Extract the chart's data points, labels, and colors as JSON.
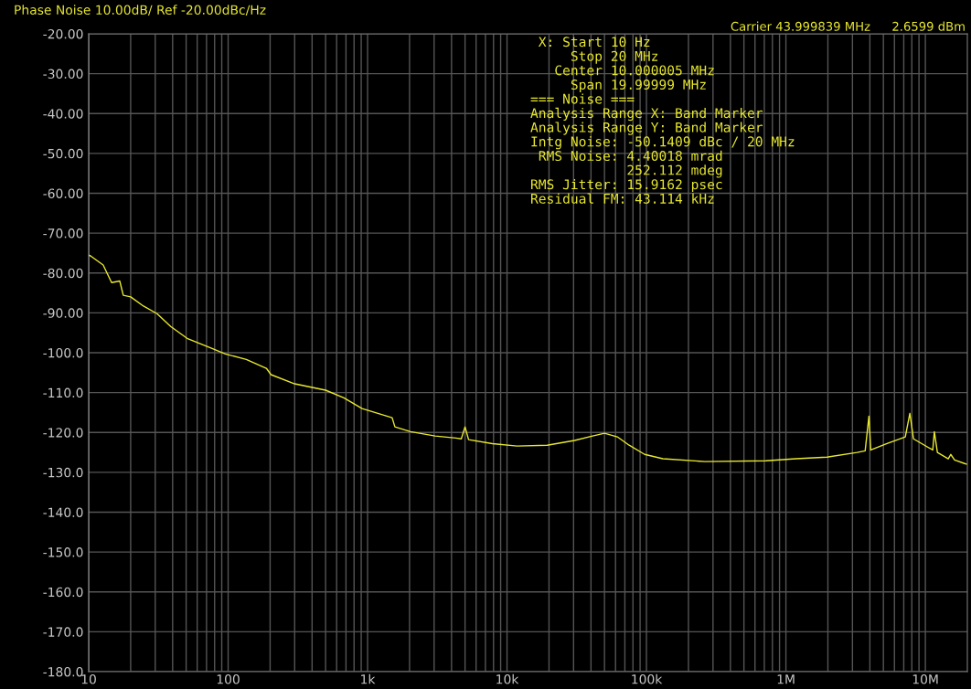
{
  "chart_data": {
    "type": "line",
    "title": "Phase Noise 10.00dB/ Ref -20.00dBc/Hz",
    "log": "x",
    "grid": true,
    "marker": "none",
    "line_style": "solid",
    "xlim": [
      10,
      20000000
    ],
    "ylim": [
      -180,
      -20
    ],
    "xticks": [
      {
        "value": 10,
        "label": "10"
      },
      {
        "value": 20,
        "label": null
      },
      {
        "value": 30,
        "label": null
      },
      {
        "value": 40,
        "label": null
      },
      {
        "value": 50,
        "label": null
      },
      {
        "value": 60,
        "label": null
      },
      {
        "value": 70,
        "label": null
      },
      {
        "value": 80,
        "label": null
      },
      {
        "value": 90,
        "label": null
      },
      {
        "value": 100,
        "label": "100"
      },
      {
        "value": 200,
        "label": null
      },
      {
        "value": 300,
        "label": null
      },
      {
        "value": 400,
        "label": null
      },
      {
        "value": 500,
        "label": null
      },
      {
        "value": 600,
        "label": null
      },
      {
        "value": 700,
        "label": null
      },
      {
        "value": 800,
        "label": null
      },
      {
        "value": 900,
        "label": null
      },
      {
        "value": 1000,
        "label": "1k"
      },
      {
        "value": 2000,
        "label": null
      },
      {
        "value": 3000,
        "label": null
      },
      {
        "value": 4000,
        "label": null
      },
      {
        "value": 5000,
        "label": null
      },
      {
        "value": 6000,
        "label": null
      },
      {
        "value": 7000,
        "label": null
      },
      {
        "value": 8000,
        "label": null
      },
      {
        "value": 9000,
        "label": null
      },
      {
        "value": 10000,
        "label": "10k"
      },
      {
        "value": 20000,
        "label": null
      },
      {
        "value": 30000,
        "label": null
      },
      {
        "value": 40000,
        "label": null
      },
      {
        "value": 50000,
        "label": null
      },
      {
        "value": 60000,
        "label": null
      },
      {
        "value": 70000,
        "label": null
      },
      {
        "value": 80000,
        "label": null
      },
      {
        "value": 90000,
        "label": null
      },
      {
        "value": 100000,
        "label": "100k"
      },
      {
        "value": 200000,
        "label": null
      },
      {
        "value": 300000,
        "label": null
      },
      {
        "value": 400000,
        "label": null
      },
      {
        "value": 500000,
        "label": null
      },
      {
        "value": 600000,
        "label": null
      },
      {
        "value": 700000,
        "label": null
      },
      {
        "value": 800000,
        "label": null
      },
      {
        "value": 900000,
        "label": null
      },
      {
        "value": 1000000,
        "label": "1M"
      },
      {
        "value": 2000000,
        "label": null
      },
      {
        "value": 3000000,
        "label": null
      },
      {
        "value": 4000000,
        "label": null
      },
      {
        "value": 5000000,
        "label": null
      },
      {
        "value": 6000000,
        "label": null
      },
      {
        "value": 7000000,
        "label": null
      },
      {
        "value": 8000000,
        "label": null
      },
      {
        "value": 9000000,
        "label": null
      },
      {
        "value": 10000000,
        "label": "10M"
      }
    ],
    "yticks": [
      {
        "value": -20,
        "label": "-20.00"
      },
      {
        "value": -30,
        "label": "-30.00"
      },
      {
        "value": -40,
        "label": "-40.00"
      },
      {
        "value": -50,
        "label": "-50.00"
      },
      {
        "value": -60,
        "label": "-60.00"
      },
      {
        "value": -70,
        "label": "-70.00"
      },
      {
        "value": -80,
        "label": "-80.00"
      },
      {
        "value": -90,
        "label": "-90.00"
      },
      {
        "value": -100,
        "label": "-100.0"
      },
      {
        "value": -110,
        "label": "-110.0"
      },
      {
        "value": -120,
        "label": "-120.0"
      },
      {
        "value": -130,
        "label": "-130.0"
      },
      {
        "value": -140,
        "label": "-140.0"
      },
      {
        "value": -150,
        "label": "-150.0"
      },
      {
        "value": -160,
        "label": "-160.0"
      },
      {
        "value": -170,
        "label": "-170.0"
      },
      {
        "value": -180,
        "label": "-180.0"
      }
    ],
    "annotations": [
      "Carrier 43.999839 MHz",
      "2.6599 dBm",
      " X: Start 10 Hz",
      "     Stop 20 MHz",
      "   Center 10.000005 MHz",
      "     Span 19.99999 MHz",
      "=== Noise ===",
      "Analysis Range X: Band Marker",
      "Analysis Range Y: Band Marker",
      "Intg Noise: -50.1409 dBc / 20 MHz",
      " RMS Noise: 4.40018 mrad",
      "            252.112 mdeg",
      "RMS Jitter: 15.9162 psec",
      "Residual FM: 43.114 kHz"
    ],
    "series": [
      {
        "color": "#e8e830",
        "x": [
          10,
          10.3,
          12.7,
          14.6,
          16.7,
          17.7,
          20,
          24.7,
          30.9,
          38.7,
          50.8,
          74,
          95.5,
          135,
          188,
          203,
          300,
          500,
          676,
          914,
          1500,
          1570,
          2030,
          3050,
          4300,
          4700,
          5000,
          5300,
          7850,
          11800,
          19400,
          30500,
          41100,
          50000,
          61800,
          75100,
          97000,
          131000,
          262000,
          718000,
          1180000,
          1970000,
          3240000,
          3700000,
          3940000,
          4060000,
          5310000,
          7180000,
          7740000,
          8220000,
          11300000,
          11600000,
          12200000,
          14600000,
          15200000,
          16200000,
          19100000,
          20000000
        ],
        "values": [
          -75.5,
          -75.7,
          -78,
          -82.4,
          -82,
          -85.6,
          -86,
          -88.3,
          -90.2,
          -93.4,
          -96.4,
          -98.7,
          -100.3,
          -101.7,
          -103.9,
          -105.5,
          -107.8,
          -109.4,
          -111.3,
          -114,
          -116.3,
          -118.6,
          -119.8,
          -120.9,
          -121.4,
          -121.6,
          -118.6,
          -121.8,
          -122.8,
          -123.4,
          -123.2,
          -122,
          -120.9,
          -120.2,
          -121.1,
          -123.2,
          -125.5,
          -126.6,
          -127.3,
          -127.1,
          -126.6,
          -126.2,
          -125,
          -124.6,
          -115.9,
          -124.4,
          -122.8,
          -121.1,
          -115.2,
          -121.6,
          -124.4,
          -119.8,
          -125,
          -126.6,
          -125.5,
          -126.9,
          -127.8,
          -128
        ]
      }
    ]
  }
}
